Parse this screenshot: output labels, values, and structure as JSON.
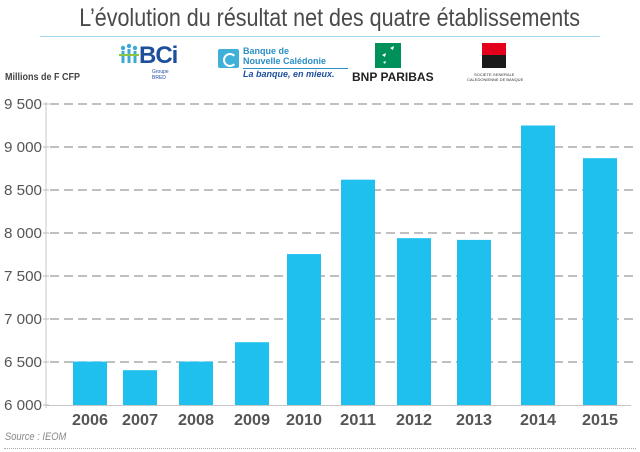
{
  "title": "L’évolution du résultat net des quatre établissements",
  "logos": {
    "bci": {
      "text": "BCi",
      "sub": "Groupe BRED"
    },
    "bnc": {
      "line1": "Banque de",
      "line2": "Nouvelle Calédonie",
      "tagline": "La banque, en mieux."
    },
    "bnp": {
      "text": "BNP PARIBAS"
    },
    "sg": {
      "line1": "SOCIETE GENERALE",
      "line2": "CALEDONIENNE DE BANQUE"
    }
  },
  "colors": {
    "bar": "#1fc0ee",
    "grid": "#9a9a9a",
    "title_rule": "#9fd6ea",
    "bnp_green": "#00915a",
    "sg_red": "#e2001a",
    "bci_blue": "#1d4f9c",
    "bnc_blue": "#2a8fc7"
  },
  "source": "Source : IEOM",
  "chart_data": {
    "type": "bar",
    "title": "L’évolution du résultat net des quatre établissements",
    "xlabel": "",
    "ylabel": "Millions de F CFP",
    "categories": [
      "2006",
      "2007",
      "2008",
      "2009",
      "2010",
      "2011",
      "2012",
      "2013",
      "2014",
      "2015"
    ],
    "values": [
      6505,
      6405,
      6505,
      6730,
      7755,
      8620,
      7940,
      7920,
      9250,
      8870
    ],
    "ylim": [
      6000,
      9500
    ],
    "yticks": [
      6000,
      6500,
      7000,
      7500,
      8000,
      8500,
      9000,
      9500
    ],
    "ytick_labels": [
      "6 000",
      "6 500",
      "7 000",
      "7 500",
      "8 000",
      "8 500",
      "9 000",
      "9 500"
    ],
    "grid": true,
    "grid_style": "dashed",
    "legend": "none"
  }
}
